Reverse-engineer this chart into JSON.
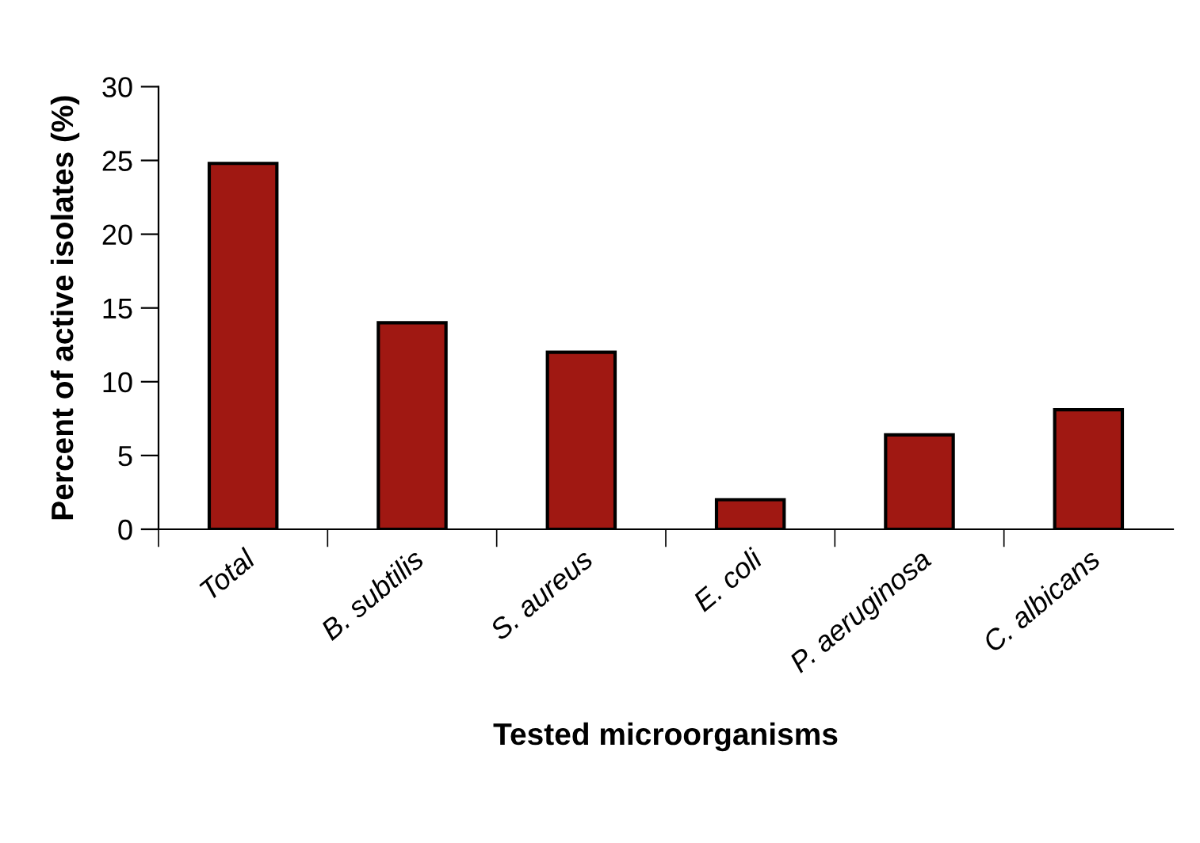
{
  "chart_data": {
    "type": "bar",
    "xlabel": "Tested microorganisms",
    "ylabel": "Percent of active isolates (%)",
    "categories": [
      "Total",
      "B. subtilis",
      "S. aureus",
      "E. coli",
      "P. aeruginosa",
      "C. albicans"
    ],
    "values": [
      24.8,
      14.0,
      12.0,
      2.0,
      6.4,
      8.1
    ],
    "color": "#a01812",
    "ylim": [
      0,
      30
    ],
    "yticks": [
      0,
      5,
      10,
      15,
      20,
      25,
      30
    ],
    "grid": false,
    "legend": false
  }
}
